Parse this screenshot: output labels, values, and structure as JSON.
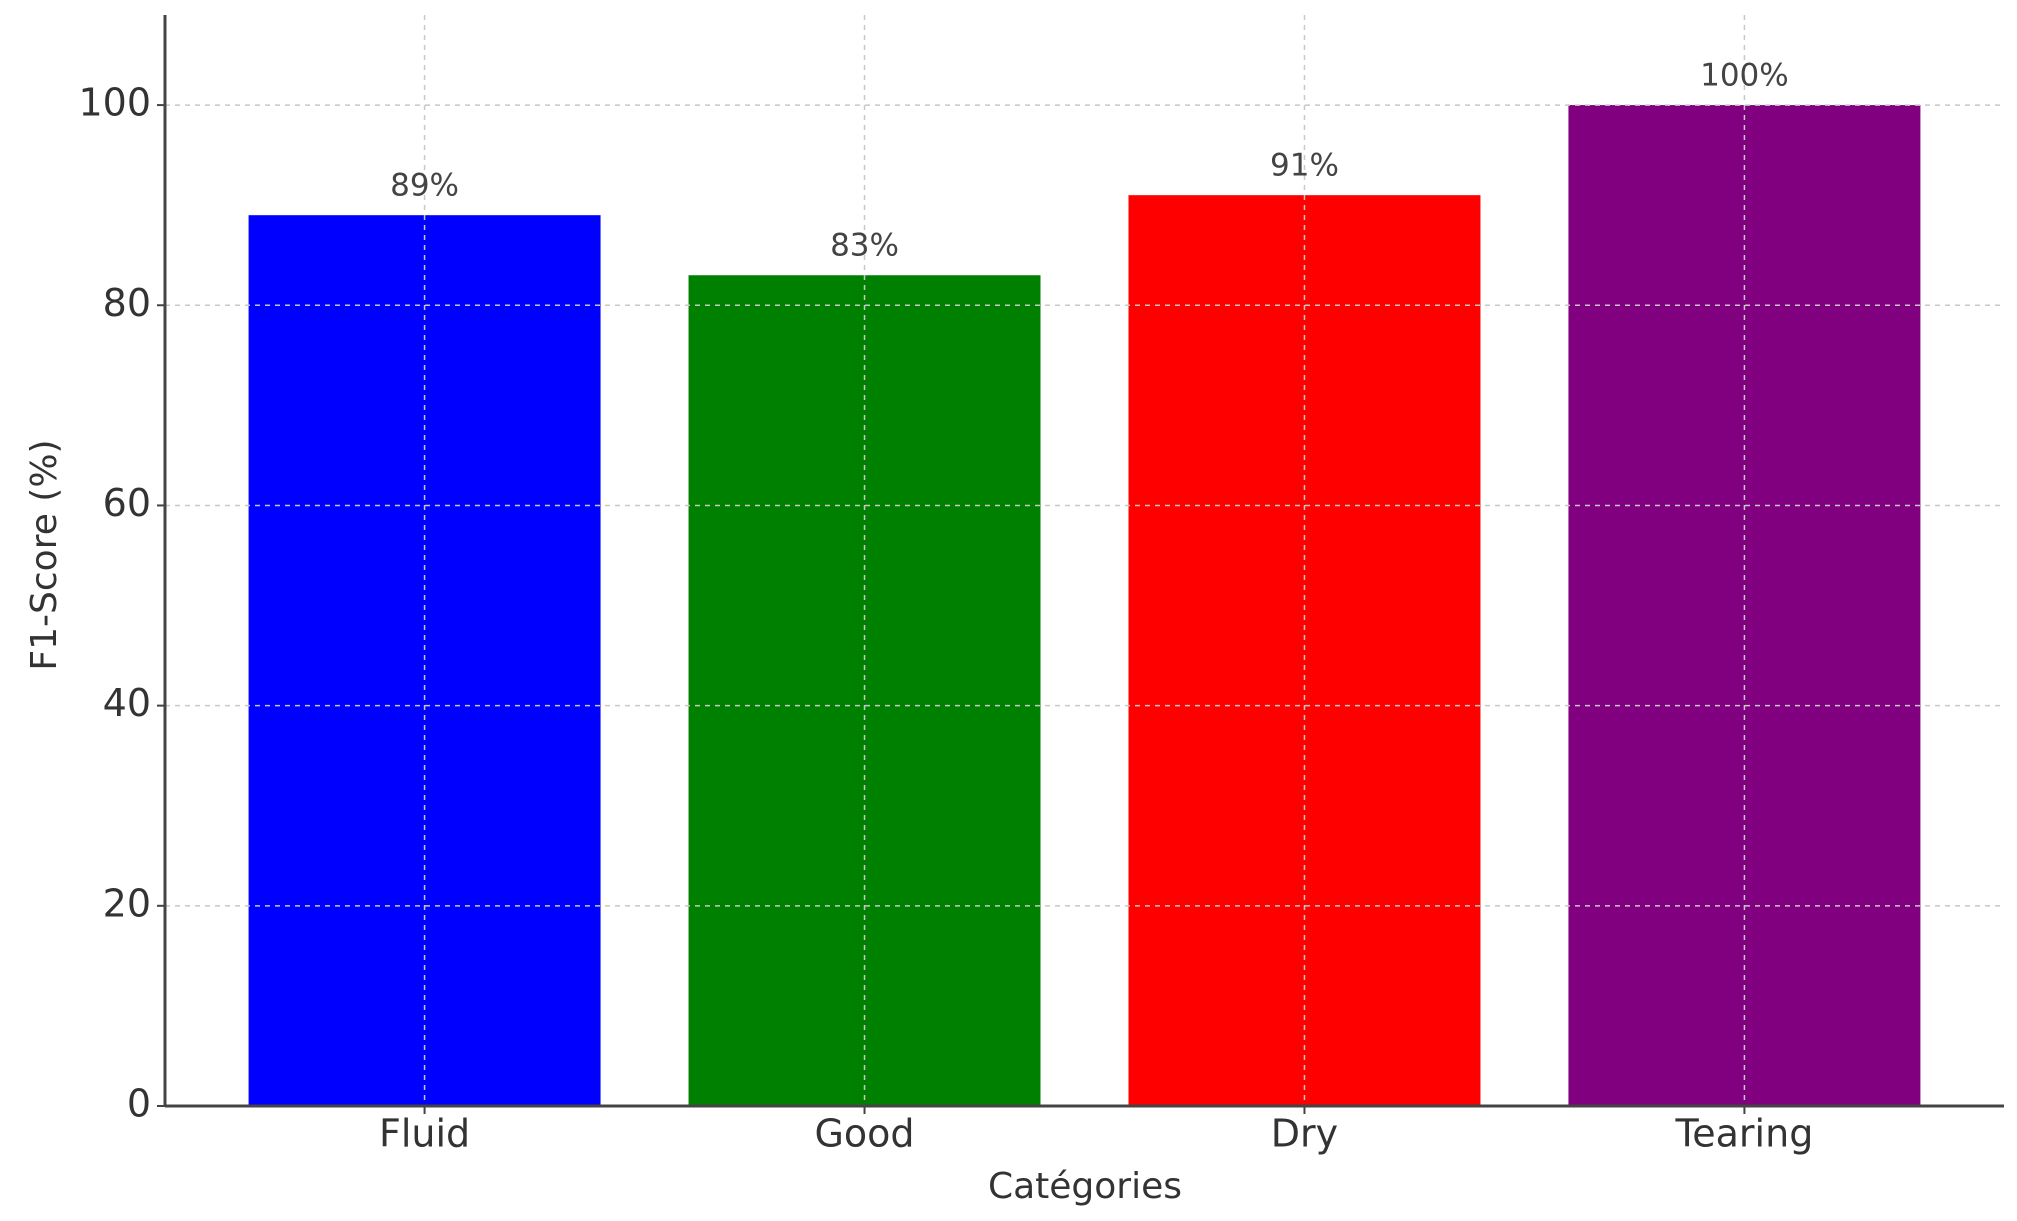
{
  "chart_data": {
    "type": "bar",
    "x_label": "Catégories",
    "y_label": "F1-Score (%)",
    "categories": [
      "Fluid",
      "Good",
      "Dry",
      "Tearing"
    ],
    "values": [
      89,
      83,
      91,
      100
    ],
    "value_labels": [
      "89%",
      "83%",
      "91%",
      "100%"
    ],
    "colors": [
      "#0000ff",
      "#008000",
      "#ff0000",
      "#800080"
    ],
    "ylim": [
      0,
      109
    ],
    "yticks": [
      0,
      20,
      40,
      60,
      80,
      100
    ],
    "grid": true
  }
}
